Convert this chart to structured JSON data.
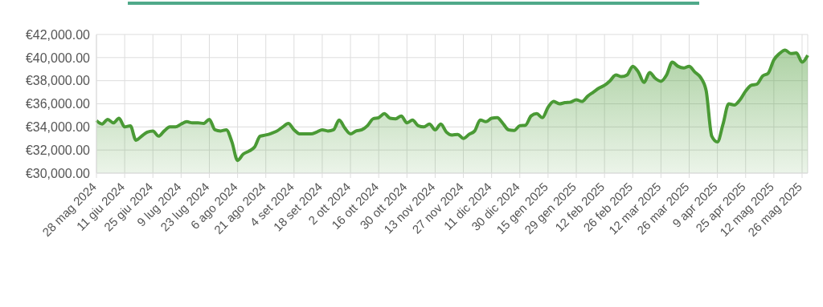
{
  "chart_data": {
    "type": "area",
    "categories": [
      "28 mag 2024",
      null,
      null,
      null,
      null,
      "11 giu 2024",
      null,
      null,
      null,
      null,
      "25 giu 2024",
      null,
      null,
      null,
      null,
      "9 lug 2024",
      null,
      null,
      null,
      null,
      "23 lug 2024",
      null,
      null,
      null,
      null,
      "6 ago 2024",
      null,
      null,
      null,
      null,
      "21 ago 2024",
      null,
      null,
      null,
      null,
      "4 set 2024",
      null,
      null,
      null,
      null,
      "18 set 2024",
      null,
      null,
      null,
      null,
      "2 ott 2024",
      null,
      null,
      null,
      null,
      "16 ott 2024",
      null,
      null,
      null,
      null,
      "30 ott 2024",
      null,
      null,
      null,
      null,
      "13 nov 2024",
      null,
      null,
      null,
      null,
      "27 nov 2024",
      null,
      null,
      null,
      null,
      "11 dic 2024",
      null,
      null,
      null,
      null,
      "30 dic 2024",
      null,
      null,
      null,
      null,
      "15 gen 2025",
      null,
      null,
      null,
      null,
      "29 gen 2025",
      null,
      null,
      null,
      null,
      "12 feb 2025",
      null,
      null,
      null,
      null,
      "26 feb 2025",
      null,
      null,
      null,
      null,
      "12 mar 2025",
      null,
      null,
      null,
      null,
      "26 mar 2025",
      null,
      null,
      null,
      null,
      "9 apr 2025",
      null,
      null,
      null,
      null,
      "25 apr 2025",
      null,
      null,
      null,
      null,
      "12 mag 2025",
      null,
      null,
      null,
      null,
      "26 mag 2025",
      null
    ],
    "series": [
      {
        "color": "#4a9a35",
        "values": [
          34550,
          34250,
          34650,
          34350,
          34750,
          34000,
          34100,
          32850,
          33200,
          33550,
          33650,
          33200,
          33650,
          34000,
          34000,
          34250,
          34450,
          34350,
          34350,
          34300,
          34650,
          33750,
          33650,
          33750,
          32700,
          31100,
          31650,
          31900,
          32250,
          33200,
          33300,
          33450,
          33650,
          34000,
          34300,
          33750,
          33400,
          33400,
          33400,
          33550,
          33750,
          33650,
          33750,
          34600,
          33900,
          33400,
          33650,
          33750,
          34100,
          34700,
          34800,
          35150,
          34750,
          34700,
          34950,
          34350,
          34600,
          34100,
          34000,
          34250,
          33750,
          34250,
          33550,
          33300,
          33350,
          33000,
          33350,
          33650,
          34600,
          34450,
          34750,
          34800,
          34300,
          33750,
          33700,
          34100,
          34150,
          34950,
          35150,
          34800,
          35700,
          36200,
          36000,
          36100,
          36150,
          36350,
          36200,
          36650,
          37000,
          37350,
          37600,
          38000,
          38500,
          38350,
          38500,
          39250,
          38750,
          37850,
          38700,
          38200,
          37950,
          38500,
          39600,
          39250,
          39100,
          39250,
          38750,
          38300,
          37150,
          33200,
          32700,
          34250,
          36000,
          35900,
          36350,
          37100,
          37600,
          37700,
          38400,
          38650,
          39800,
          40350,
          40650,
          40350,
          40400,
          39600,
          40200
        ]
      }
    ],
    "ylim": [
      30000,
      42000
    ],
    "yticks": [
      {
        "value": 30000,
        "label": "€30,000.00"
      },
      {
        "value": 32000,
        "label": "€32,000.00"
      },
      {
        "value": 34000,
        "label": "€34,000.00"
      },
      {
        "value": 36000,
        "label": "€36,000.00"
      },
      {
        "value": 38000,
        "label": "€38,000.00"
      },
      {
        "value": 40000,
        "label": "€40,000.00"
      },
      {
        "value": 42000,
        "label": "€42,000.00"
      }
    ],
    "grid": true
  }
}
